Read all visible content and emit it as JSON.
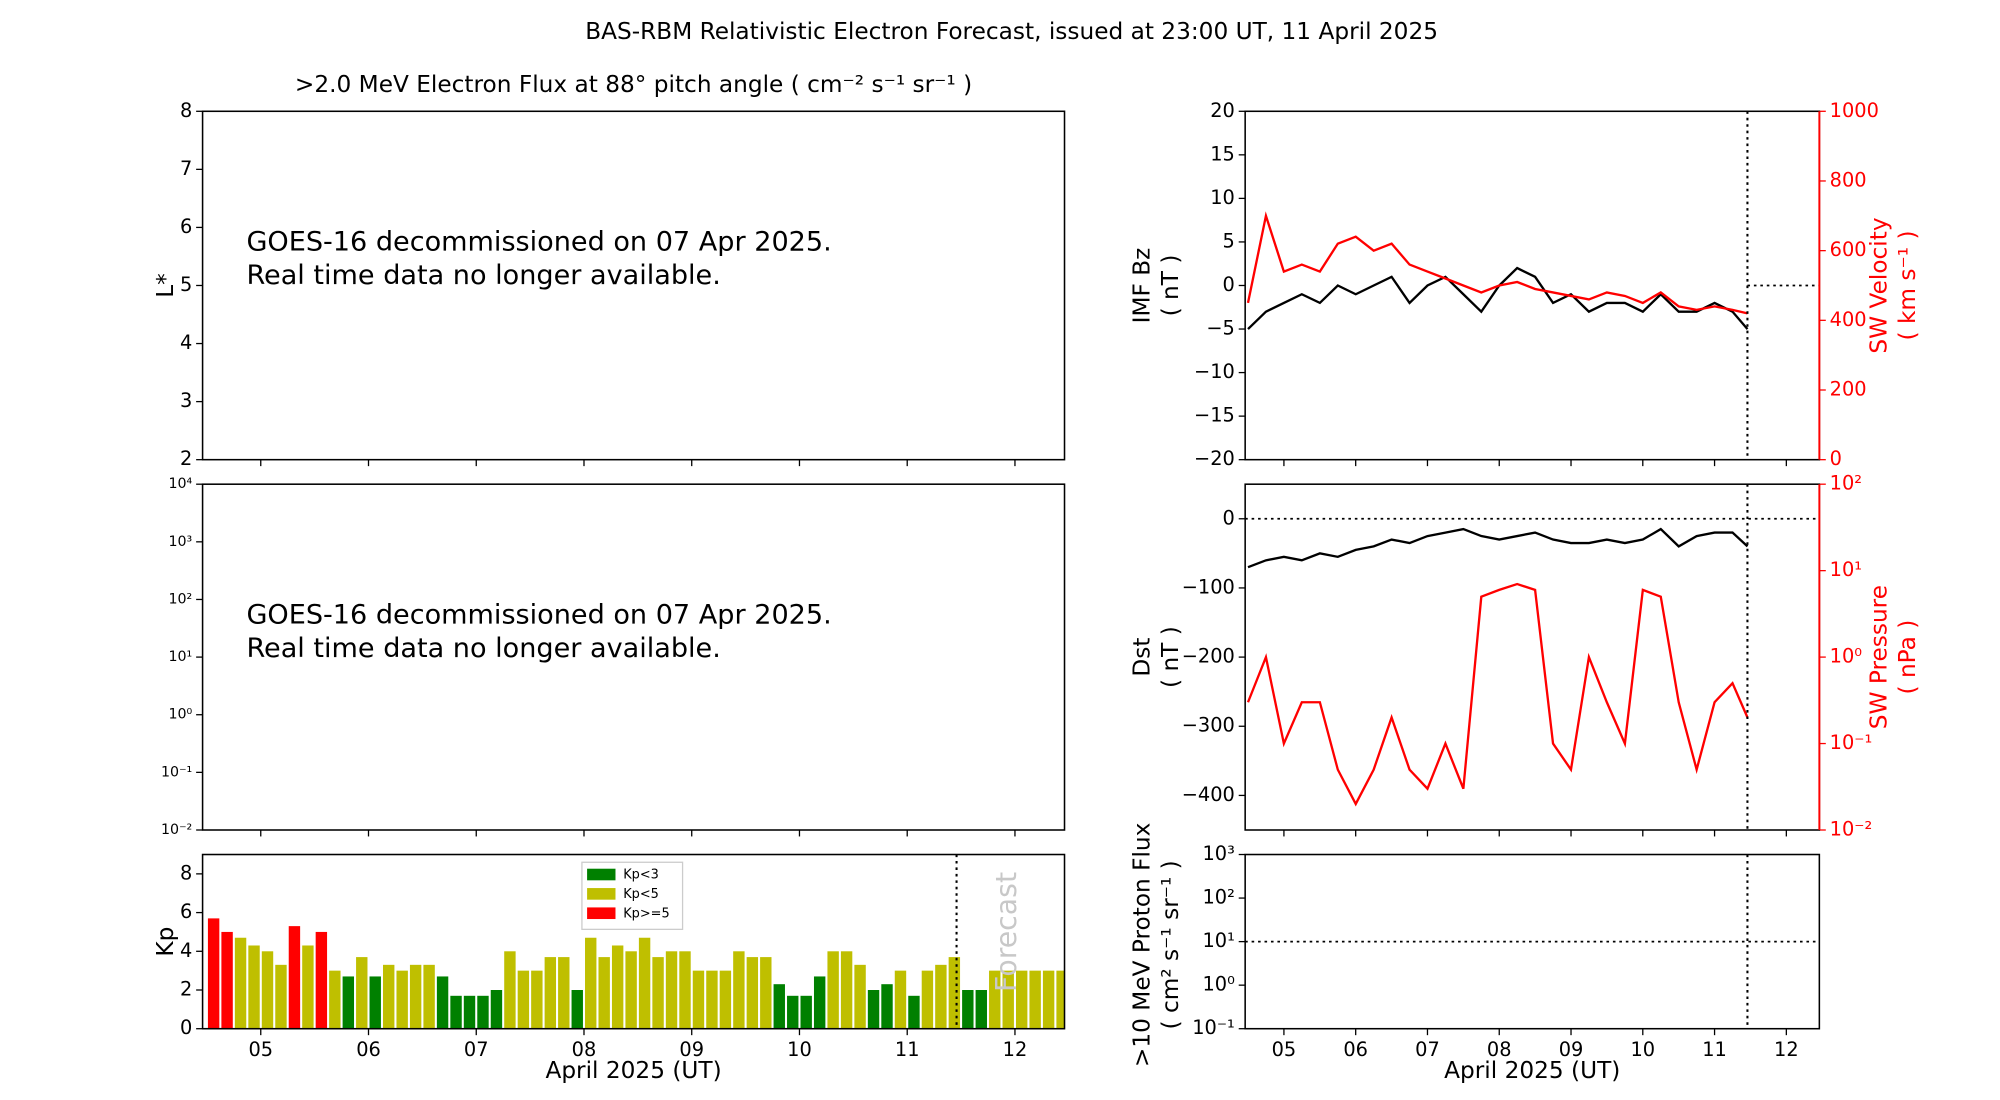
{
  "title": "BAS-RBM Relativistic Electron Forecast, issued at 23:00 UT, 11 April 2025",
  "chart_data": [
    {
      "type": "heatmap",
      "title": ">2.0 MeV Electron Flux at 88° pitch angle ( cm⁻² s⁻¹ sr⁻¹ )",
      "ylabel": [
        "L*"
      ],
      "message": [
        "GOES-16 decommissioned on 07 Apr 2025.",
        "Real time data no longer available."
      ],
      "xlim": [
        4.96,
        12.96
      ],
      "xticks": [
        5.5,
        6.5,
        7.5,
        8.5,
        9.5,
        10.5,
        11.5,
        12.5
      ],
      "ylim": [
        2,
        8
      ],
      "yticks": [
        2,
        3,
        4,
        5,
        6,
        7,
        8
      ]
    },
    {
      "type": "heatmap",
      "ylog": true,
      "message": [
        "GOES-16 decommissioned on 07 Apr 2025.",
        "Real time data no longer available."
      ],
      "xlim": [
        4.96,
        12.96
      ],
      "xticks": [
        5.5,
        6.5,
        7.5,
        8.5,
        9.5,
        10.5,
        11.5,
        12.5
      ],
      "ylim": [
        0.01,
        10000
      ],
      "yticks": [
        {
          "value": 0.01,
          "label": "10⁻²"
        },
        {
          "value": 0.1,
          "label": "10⁻¹"
        },
        {
          "value": 1,
          "label": "10⁰"
        },
        {
          "value": 10,
          "label": "10¹"
        },
        {
          "value": 100,
          "label": "10²"
        },
        {
          "value": 1000,
          "label": "10³"
        },
        {
          "value": 10000,
          "label": "10⁴"
        }
      ]
    },
    {
      "type": "bar",
      "ylabel": [
        "Kp"
      ],
      "xlabel": "April 2025 (UT)",
      "annotation": "Forecast",
      "now": 11.958,
      "xlim": [
        4.96,
        12.96
      ],
      "xticks": [
        {
          "value": 5.5,
          "label": "05"
        },
        {
          "value": 6.5,
          "label": "06"
        },
        {
          "value": 7.5,
          "label": "07"
        },
        {
          "value": 8.5,
          "label": "08"
        },
        {
          "value": 9.5,
          "label": "09"
        },
        {
          "value": 10.5,
          "label": "10"
        },
        {
          "value": 11.5,
          "label": "11"
        },
        {
          "value": 12.5,
          "label": "12"
        }
      ],
      "ylim": [
        0,
        9
      ],
      "yticks": [
        0,
        2,
        4,
        6,
        8
      ],
      "legend": "upper center",
      "legend_entries": [
        {
          "label": "Kp<3",
          "color": "green",
          "max": 3
        },
        {
          "label": "Kp<5",
          "color": "#bfbf00",
          "max": 5
        },
        {
          "label": "Kp>=5",
          "color": "red"
        }
      ],
      "x": [
        5,
        5.125,
        5.25,
        5.375,
        5.5,
        5.625,
        5.75,
        5.875,
        6,
        6.125,
        6.25,
        6.375,
        6.5,
        6.625,
        6.75,
        6.875,
        7,
        7.125,
        7.25,
        7.375,
        7.5,
        7.625,
        7.75,
        7.875,
        8,
        8.125,
        8.25,
        8.375,
        8.5,
        8.625,
        8.75,
        8.875,
        9,
        9.125,
        9.25,
        9.375,
        9.5,
        9.625,
        9.75,
        9.875,
        10,
        10.125,
        10.25,
        10.375,
        10.5,
        10.625,
        10.75,
        10.875,
        11,
        11.125,
        11.25,
        11.375,
        11.5,
        11.625,
        11.75,
        11.875,
        12,
        12.125,
        12.25,
        12.375,
        12.5,
        12.625,
        12.75,
        12.875
      ],
      "values": [
        5.7,
        5.0,
        4.7,
        4.3,
        4.0,
        3.3,
        5.3,
        4.3,
        5.0,
        3.0,
        2.7,
        3.7,
        2.7,
        3.3,
        3.0,
        3.3,
        3.3,
        2.7,
        1.7,
        1.7,
        1.7,
        2.0,
        4.0,
        3.0,
        3.0,
        3.7,
        3.7,
        2.0,
        4.7,
        3.7,
        4.3,
        4.0,
        4.7,
        3.7,
        4.0,
        4.0,
        3.0,
        3.0,
        3.0,
        4.0,
        3.7,
        3.7,
        2.3,
        1.7,
        1.7,
        2.7,
        4.0,
        4.0,
        3.3,
        2.0,
        2.3,
        3.0,
        1.7,
        3.0,
        3.3,
        3.7,
        2.0,
        2.0,
        3.0,
        3.0,
        3.0,
        3.0,
        3.0,
        3.0
      ]
    },
    {
      "type": "line",
      "ylabel": [
        "IMF Bz",
        "( nT )"
      ],
      "y2label": [
        "SW Velocity",
        "( km s⁻¹ )"
      ],
      "y2color": "red",
      "now": 11.958,
      "hline": 0,
      "hline_after_now": true,
      "xlim": [
        4.96,
        12.96
      ],
      "xticks": [
        5.5,
        6.5,
        7.5,
        8.5,
        9.5,
        10.5,
        11.5,
        12.5
      ],
      "ylim": [
        -20,
        20
      ],
      "yticks": [
        {
          "value": -20,
          "label": "−20"
        },
        {
          "value": -15,
          "label": "−15"
        },
        {
          "value": -10,
          "label": "−10"
        },
        {
          "value": -5,
          "label": "−5"
        },
        0,
        5,
        10,
        15,
        20
      ],
      "y2lim": [
        0,
        1000
      ],
      "y2ticks": [
        0,
        200,
        400,
        600,
        800,
        1000
      ],
      "x": [
        5,
        5.25,
        5.5,
        5.75,
        6,
        6.25,
        6.5,
        6.75,
        7,
        7.25,
        7.5,
        7.75,
        8,
        8.25,
        8.5,
        8.75,
        9,
        9.25,
        9.5,
        9.75,
        10,
        10.25,
        10.5,
        10.75,
        11,
        11.25,
        11.5,
        11.75,
        11.958
      ],
      "series": [
        {
          "color": "black",
          "values": [
            -5,
            -3,
            -2,
            -1,
            -2,
            0,
            -1,
            0,
            1,
            -2,
            0,
            1,
            -1,
            -3,
            0,
            2,
            1,
            -2,
            -1,
            -3,
            -2,
            -2,
            -3,
            -1,
            -3,
            -3,
            -2,
            -3,
            -5
          ]
        },
        {
          "color": "red",
          "axis": "y2",
          "values": [
            450,
            700,
            540,
            560,
            540,
            620,
            640,
            600,
            620,
            560,
            540,
            520,
            500,
            480,
            500,
            510,
            490,
            480,
            470,
            460,
            480,
            470,
            450,
            480,
            440,
            430,
            440,
            430,
            420
          ]
        }
      ]
    },
    {
      "type": "line",
      "ylabel": [
        "Dst",
        "( nT )"
      ],
      "y2label": [
        "SW Pressure",
        "( nPa )"
      ],
      "y2color": "red",
      "y2log": true,
      "now": 11.958,
      "hline": 0,
      "xlim": [
        4.96,
        12.96
      ],
      "xticks": [
        5.5,
        6.5,
        7.5,
        8.5,
        9.5,
        10.5,
        11.5,
        12.5
      ],
      "ylim": [
        -450,
        50
      ],
      "yticks": [
        {
          "value": -400,
          "label": "−400"
        },
        {
          "value": -300,
          "label": "−300"
        },
        {
          "value": -200,
          "label": "−200"
        },
        {
          "value": -100,
          "label": "−100"
        },
        0
      ],
      "y2lim": [
        0.01,
        100
      ],
      "y2ticks": [
        {
          "value": 0.01,
          "label": "10⁻²"
        },
        {
          "value": 0.1,
          "label": "10⁻¹"
        },
        {
          "value": 1,
          "label": "10⁰"
        },
        {
          "value": 10,
          "label": "10¹"
        },
        {
          "value": 100,
          "label": "10²"
        }
      ],
      "x": [
        5,
        5.25,
        5.5,
        5.75,
        6,
        6.25,
        6.5,
        6.75,
        7,
        7.25,
        7.5,
        7.75,
        8,
        8.25,
        8.5,
        8.75,
        9,
        9.25,
        9.5,
        9.75,
        10,
        10.25,
        10.5,
        10.75,
        11,
        11.25,
        11.5,
        11.75,
        11.958
      ],
      "series": [
        {
          "color": "black",
          "values": [
            -70,
            -60,
            -55,
            -60,
            -50,
            -55,
            -45,
            -40,
            -30,
            -35,
            -25,
            -20,
            -15,
            -25,
            -30,
            -25,
            -20,
            -30,
            -35,
            -35,
            -30,
            -35,
            -30,
            -15,
            -40,
            -25,
            -20,
            -20,
            -40
          ]
        },
        {
          "color": "red",
          "axis": "y2",
          "values": [
            0.3,
            1,
            0.1,
            0.3,
            0.3,
            0.05,
            0.02,
            0.05,
            0.2,
            0.05,
            0.03,
            0.1,
            0.03,
            5,
            6,
            7,
            6,
            0.1,
            0.05,
            1,
            0.3,
            0.1,
            6,
            5,
            0.3,
            0.05,
            0.3,
            0.5,
            0.2
          ]
        }
      ]
    },
    {
      "type": "line",
      "ylabel": [
        ">10 MeV Proton Flux",
        "( cm² s⁻¹ sr⁻¹ )"
      ],
      "xlabel": "April 2025 (UT)",
      "ylog": true,
      "now": 11.958,
      "hline": 10,
      "xlim": [
        4.96,
        12.96
      ],
      "xticks": [
        {
          "value": 5.5,
          "label": "05"
        },
        {
          "value": 6.5,
          "label": "06"
        },
        {
          "value": 7.5,
          "label": "07"
        },
        {
          "value": 8.5,
          "label": "08"
        },
        {
          "value": 9.5,
          "label": "09"
        },
        {
          "value": 10.5,
          "label": "10"
        },
        {
          "value": 11.5,
          "label": "11"
        },
        {
          "value": 12.5,
          "label": "12"
        }
      ],
      "ylim": [
        0.1,
        1000
      ],
      "yticks": [
        {
          "value": 0.1,
          "label": "10⁻¹"
        },
        {
          "value": 1,
          "label": "10⁰"
        },
        {
          "value": 10,
          "label": "10¹"
        },
        {
          "value": 100,
          "label": "10²"
        },
        {
          "value": 1000,
          "label": "10³"
        }
      ],
      "series": []
    }
  ]
}
